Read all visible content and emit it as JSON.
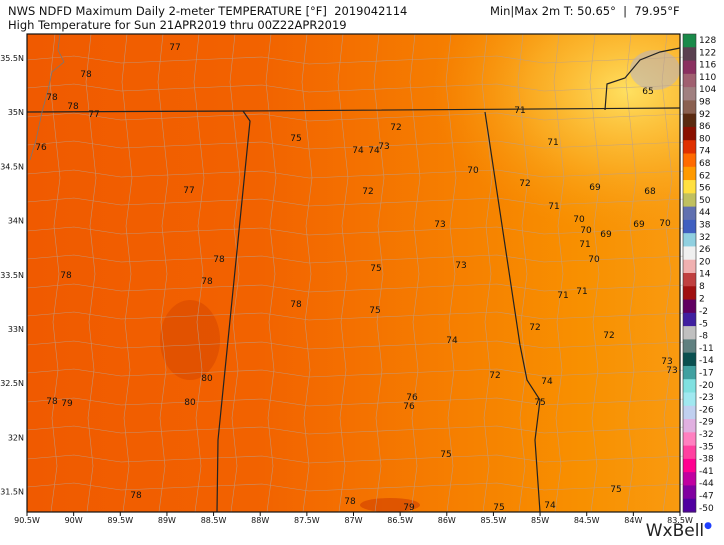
{
  "header": {
    "line1_left": "NWS NDFD Maximum Daily 2-meter TEMPERATURE [°F]  2019042114",
    "line1_right": "Min|Max 2m T: 50.65°  |  79.95°F",
    "line2": "High Temperature for Sun 21APR2019 thru 00Z22APR2019"
  },
  "map": {
    "longitude_labels": [
      "90.5W",
      "90W",
      "89.5W",
      "89W",
      "88.5W",
      "88W",
      "87.5W",
      "87W",
      "86.5W",
      "86W",
      "85.5W",
      "85W",
      "84.5W",
      "84W",
      "83.5W"
    ],
    "latitude_labels": [
      "35.5N",
      "35N",
      "34.5N",
      "34N",
      "33.5N",
      "33N",
      "32.5N",
      "32N",
      "31.5N"
    ],
    "temperature_labels": [
      77,
      78,
      78,
      78,
      77,
      76,
      77,
      78,
      78,
      78,
      78,
      80,
      80,
      78,
      79,
      78,
      75,
      72,
      74,
      74,
      73,
      70,
      72,
      72,
      71,
      65,
      71,
      69,
      68,
      71,
      70,
      70,
      69,
      69,
      70,
      71,
      70,
      73,
      73,
      75,
      75,
      71,
      71,
      72,
      72,
      74,
      72,
      74,
      73,
      73,
      76,
      76,
      75,
      75,
      78,
      79,
      75,
      74,
      75
    ]
  },
  "colorbar": {
    "labels": [
      "128",
      "122",
      "116",
      "110",
      "104",
      "98",
      "92",
      "86",
      "80",
      "74",
      "68",
      "62",
      "56",
      "50",
      "44",
      "38",
      "32",
      "26",
      "20",
      "14",
      "8",
      "2",
      "-2",
      "-5",
      "-8",
      "-11",
      "-14",
      "-17",
      "-20",
      "-23",
      "-26",
      "-29",
      "-32",
      "-35",
      "-38",
      "-41",
      "-44",
      "-47",
      "-50"
    ],
    "colors": [
      "#1a8a4a",
      "#5a4050",
      "#8a3060",
      "#a06070",
      "#a08080",
      "#8a6050",
      "#5a2a10",
      "#8a1000",
      "#e03000",
      "#ff6a00",
      "#ff9a00",
      "#ffe040",
      "#c0c060",
      "#6070b0",
      "#4060c0",
      "#90d0e0",
      "#f0f0f0",
      "#f0b0b0",
      "#c04040",
      "#a01010",
      "#600060",
      "#4020a0",
      "#c0c0c0",
      "#608080",
      "#0a5050",
      "#40a0a0",
      "#80e0e0",
      "#a0e8f0",
      "#c0d0f0",
      "#e0b0e0",
      "#ff80c0",
      "#ff40a0",
      "#ff0090",
      "#c000a0",
      "#8000a0",
      "#5000a0"
    ]
  },
  "branding": {
    "logo": "WxBell"
  }
}
